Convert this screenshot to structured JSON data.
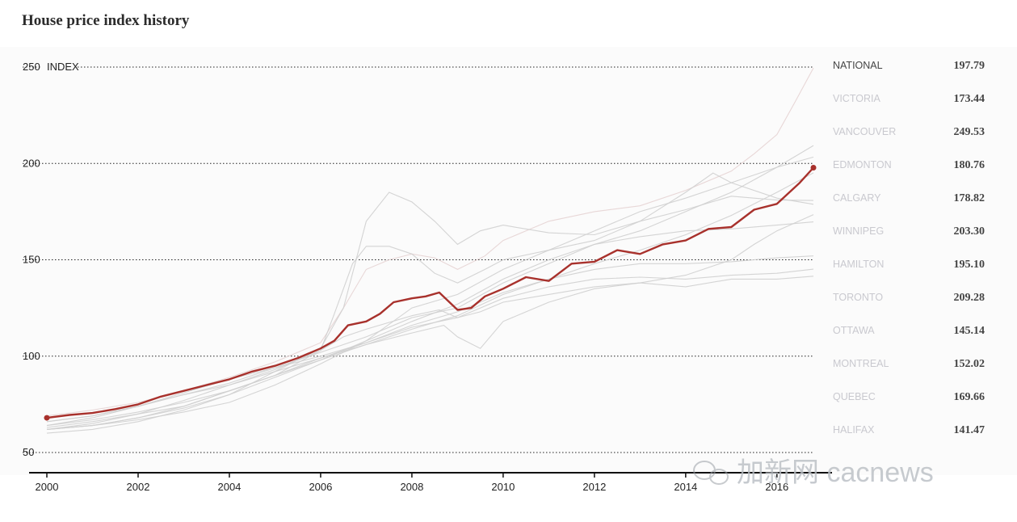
{
  "chart_data": {
    "type": "line",
    "title": "House price index history",
    "ylabel": "INDEX",
    "ylim": [
      50,
      250
    ],
    "xlim": [
      2000,
      2016.8
    ],
    "yticks": [
      50,
      100,
      150,
      200,
      250
    ],
    "xticks": [
      2000,
      2002,
      2004,
      2006,
      2008,
      2010,
      2012,
      2014,
      2016
    ],
    "grid": true,
    "highlight": "NATIONAL",
    "colors": {
      "highlight": "#a8312c",
      "muted": "#cfcfcf",
      "vancouver": "#e6d3d3",
      "muted_text": "#c9c9cf",
      "value_text": "#444444"
    },
    "series": [
      {
        "name": "NATIONAL",
        "latest": "197.79",
        "points": [
          [
            2000,
            68
          ],
          [
            2000.5,
            69.5
          ],
          [
            2001,
            70.5
          ],
          [
            2001.5,
            72.5
          ],
          [
            2002,
            75
          ],
          [
            2002.5,
            79
          ],
          [
            2003,
            82
          ],
          [
            2003.5,
            85
          ],
          [
            2004,
            88
          ],
          [
            2004.5,
            92
          ],
          [
            2005,
            95
          ],
          [
            2005.5,
            99
          ],
          [
            2006,
            104
          ],
          [
            2006.3,
            108
          ],
          [
            2006.6,
            116
          ],
          [
            2007,
            118
          ],
          [
            2007.3,
            122
          ],
          [
            2007.6,
            128
          ],
          [
            2008,
            130
          ],
          [
            2008.3,
            131
          ],
          [
            2008.6,
            133
          ],
          [
            2009,
            124
          ],
          [
            2009.3,
            125
          ],
          [
            2009.6,
            131
          ],
          [
            2010,
            135
          ],
          [
            2010.5,
            141
          ],
          [
            2011,
            139
          ],
          [
            2011.5,
            148
          ],
          [
            2012,
            149
          ],
          [
            2012.5,
            155
          ],
          [
            2013,
            153
          ],
          [
            2013.5,
            158
          ],
          [
            2014,
            160
          ],
          [
            2014.5,
            166
          ],
          [
            2015,
            167
          ],
          [
            2015.5,
            176
          ],
          [
            2016,
            179
          ],
          [
            2016.5,
            190
          ],
          [
            2016.8,
            197.79
          ]
        ]
      },
      {
        "name": "VICTORIA",
        "latest": "173.44",
        "points": [
          [
            2000,
            66
          ],
          [
            2001,
            69
          ],
          [
            2002,
            74
          ],
          [
            2003,
            80
          ],
          [
            2004,
            85
          ],
          [
            2005,
            93
          ],
          [
            2006,
            103
          ],
          [
            2006.5,
            110
          ],
          [
            2007,
            114
          ],
          [
            2008,
            121
          ],
          [
            2008.6,
            124
          ],
          [
            2009,
            120
          ],
          [
            2009.5,
            123
          ],
          [
            2010,
            128
          ],
          [
            2011,
            132
          ],
          [
            2012,
            136
          ],
          [
            2013,
            138
          ],
          [
            2014,
            142
          ],
          [
            2015,
            150
          ],
          [
            2015.5,
            158
          ],
          [
            2016,
            165
          ],
          [
            2016.8,
            173.44
          ]
        ]
      },
      {
        "name": "VANCOUVER",
        "latest": "249.53",
        "points": [
          [
            2000,
            69
          ],
          [
            2001,
            72
          ],
          [
            2002,
            76
          ],
          [
            2003,
            82
          ],
          [
            2004,
            89
          ],
          [
            2005,
            97
          ],
          [
            2006,
            107
          ],
          [
            2006.5,
            125
          ],
          [
            2007,
            145
          ],
          [
            2007.5,
            150
          ],
          [
            2008,
            153
          ],
          [
            2008.5,
            151
          ],
          [
            2009,
            145
          ],
          [
            2009.6,
            152
          ],
          [
            2010,
            160
          ],
          [
            2011,
            170
          ],
          [
            2012,
            175
          ],
          [
            2013,
            178
          ],
          [
            2014,
            186
          ],
          [
            2015,
            196
          ],
          [
            2015.5,
            205
          ],
          [
            2016,
            215
          ],
          [
            2016.4,
            232
          ],
          [
            2016.8,
            249.53
          ]
        ]
      },
      {
        "name": "EDMONTON",
        "latest": "180.76",
        "points": [
          [
            2000,
            62
          ],
          [
            2001,
            64
          ],
          [
            2002,
            68
          ],
          [
            2003,
            73
          ],
          [
            2004,
            80
          ],
          [
            2005,
            92
          ],
          [
            2006,
            104
          ],
          [
            2006.5,
            125
          ],
          [
            2007,
            170
          ],
          [
            2007.5,
            185
          ],
          [
            2008,
            180
          ],
          [
            2008.5,
            170
          ],
          [
            2009,
            158
          ],
          [
            2009.5,
            165
          ],
          [
            2010,
            168
          ],
          [
            2011,
            164
          ],
          [
            2012,
            163
          ],
          [
            2013,
            170
          ],
          [
            2014,
            176
          ],
          [
            2015,
            183
          ],
          [
            2016,
            181
          ],
          [
            2016.8,
            180.76
          ]
        ]
      },
      {
        "name": "CALGARY",
        "latest": "178.82",
        "points": [
          [
            2000,
            63
          ],
          [
            2001,
            66
          ],
          [
            2002,
            70
          ],
          [
            2003,
            74
          ],
          [
            2004,
            82
          ],
          [
            2005,
            90
          ],
          [
            2006,
            103
          ],
          [
            2006.3,
            122
          ],
          [
            2006.7,
            148
          ],
          [
            2007,
            157
          ],
          [
            2007.5,
            157
          ],
          [
            2008,
            153
          ],
          [
            2008.5,
            143
          ],
          [
            2009,
            138
          ],
          [
            2009.6,
            145
          ],
          [
            2010,
            150
          ],
          [
            2011,
            155
          ],
          [
            2012,
            160
          ],
          [
            2013,
            170
          ],
          [
            2014,
            185
          ],
          [
            2014.6,
            195
          ],
          [
            2015,
            190
          ],
          [
            2016,
            182
          ],
          [
            2016.8,
            178.82
          ]
        ]
      },
      {
        "name": "WINNIPEG",
        "latest": "203.30",
        "points": [
          [
            2000,
            62
          ],
          [
            2001,
            64
          ],
          [
            2002,
            67
          ],
          [
            2003,
            71
          ],
          [
            2004,
            76
          ],
          [
            2005,
            85
          ],
          [
            2006,
            96
          ],
          [
            2007,
            108
          ],
          [
            2008,
            125
          ],
          [
            2009,
            132
          ],
          [
            2010,
            145
          ],
          [
            2011,
            155
          ],
          [
            2012,
            165
          ],
          [
            2013,
            175
          ],
          [
            2014,
            182
          ],
          [
            2015,
            190
          ],
          [
            2016,
            198
          ],
          [
            2016.8,
            203.3
          ]
        ]
      },
      {
        "name": "HAMILTON",
        "latest": "195.10",
        "points": [
          [
            2000,
            64
          ],
          [
            2001,
            67
          ],
          [
            2002,
            71
          ],
          [
            2003,
            76
          ],
          [
            2004,
            82
          ],
          [
            2005,
            90
          ],
          [
            2006,
            99
          ],
          [
            2007,
            107
          ],
          [
            2008,
            116
          ],
          [
            2009,
            123
          ],
          [
            2010,
            133
          ],
          [
            2011,
            140
          ],
          [
            2012,
            148
          ],
          [
            2013,
            155
          ],
          [
            2014,
            163
          ],
          [
            2015,
            173
          ],
          [
            2016,
            185
          ],
          [
            2016.8,
            195.1
          ]
        ]
      },
      {
        "name": "TORONTO",
        "latest": "209.28",
        "points": [
          [
            2000,
            66
          ],
          [
            2001,
            69
          ],
          [
            2002,
            74
          ],
          [
            2003,
            80
          ],
          [
            2004,
            86
          ],
          [
            2005,
            94
          ],
          [
            2006,
            102
          ],
          [
            2007,
            110
          ],
          [
            2008,
            120
          ],
          [
            2009,
            125
          ],
          [
            2010,
            138
          ],
          [
            2011,
            148
          ],
          [
            2012,
            158
          ],
          [
            2013,
            165
          ],
          [
            2014,
            175
          ],
          [
            2015,
            185
          ],
          [
            2016,
            198
          ],
          [
            2016.8,
            209.28
          ]
        ]
      },
      {
        "name": "OTTAWA",
        "latest": "145.14",
        "points": [
          [
            2000,
            64
          ],
          [
            2001,
            68
          ],
          [
            2002,
            74
          ],
          [
            2003,
            81
          ],
          [
            2004,
            88
          ],
          [
            2005,
            94
          ],
          [
            2006,
            100
          ],
          [
            2007,
            107
          ],
          [
            2008,
            115
          ],
          [
            2009,
            120
          ],
          [
            2010,
            130
          ],
          [
            2011,
            136
          ],
          [
            2012,
            140
          ],
          [
            2013,
            141
          ],
          [
            2014,
            140
          ],
          [
            2015,
            142
          ],
          [
            2016,
            143
          ],
          [
            2016.8,
            145.14
          ]
        ]
      },
      {
        "name": "MONTREAL",
        "latest": "152.02",
        "points": [
          [
            2000,
            62
          ],
          [
            2001,
            65
          ],
          [
            2002,
            70
          ],
          [
            2003,
            77
          ],
          [
            2004,
            85
          ],
          [
            2005,
            92
          ],
          [
            2006,
            99
          ],
          [
            2007,
            106
          ],
          [
            2008,
            114
          ],
          [
            2009,
            121
          ],
          [
            2010,
            132
          ],
          [
            2011,
            140
          ],
          [
            2012,
            145
          ],
          [
            2013,
            148
          ],
          [
            2014,
            148
          ],
          [
            2015,
            149
          ],
          [
            2016,
            151
          ],
          [
            2016.8,
            152.02
          ]
        ]
      },
      {
        "name": "QUEBEC",
        "latest": "169.66",
        "points": [
          [
            2000,
            60
          ],
          [
            2001,
            62
          ],
          [
            2002,
            66
          ],
          [
            2003,
            72
          ],
          [
            2004,
            80
          ],
          [
            2005,
            89
          ],
          [
            2006,
            98
          ],
          [
            2007,
            108
          ],
          [
            2008,
            118
          ],
          [
            2009,
            127
          ],
          [
            2010,
            140
          ],
          [
            2011,
            150
          ],
          [
            2012,
            158
          ],
          [
            2013,
            162
          ],
          [
            2014,
            165
          ],
          [
            2015,
            166
          ],
          [
            2016,
            168
          ],
          [
            2016.8,
            169.66
          ]
        ]
      },
      {
        "name": "HALIFAX",
        "latest": "141.47",
        "points": [
          [
            2000,
            62
          ],
          [
            2001,
            64
          ],
          [
            2002,
            68
          ],
          [
            2003,
            74
          ],
          [
            2004,
            82
          ],
          [
            2005,
            90
          ],
          [
            2006,
            98
          ],
          [
            2007,
            106
          ],
          [
            2008,
            112
          ],
          [
            2008.7,
            116
          ],
          [
            2009,
            110
          ],
          [
            2009.5,
            104
          ],
          [
            2010,
            118
          ],
          [
            2011,
            128
          ],
          [
            2012,
            135
          ],
          [
            2013,
            138
          ],
          [
            2014,
            136
          ],
          [
            2015,
            140
          ],
          [
            2016,
            140
          ],
          [
            2016.8,
            141.47
          ]
        ]
      }
    ]
  },
  "watermark": {
    "text": "加新网 cacnews"
  }
}
